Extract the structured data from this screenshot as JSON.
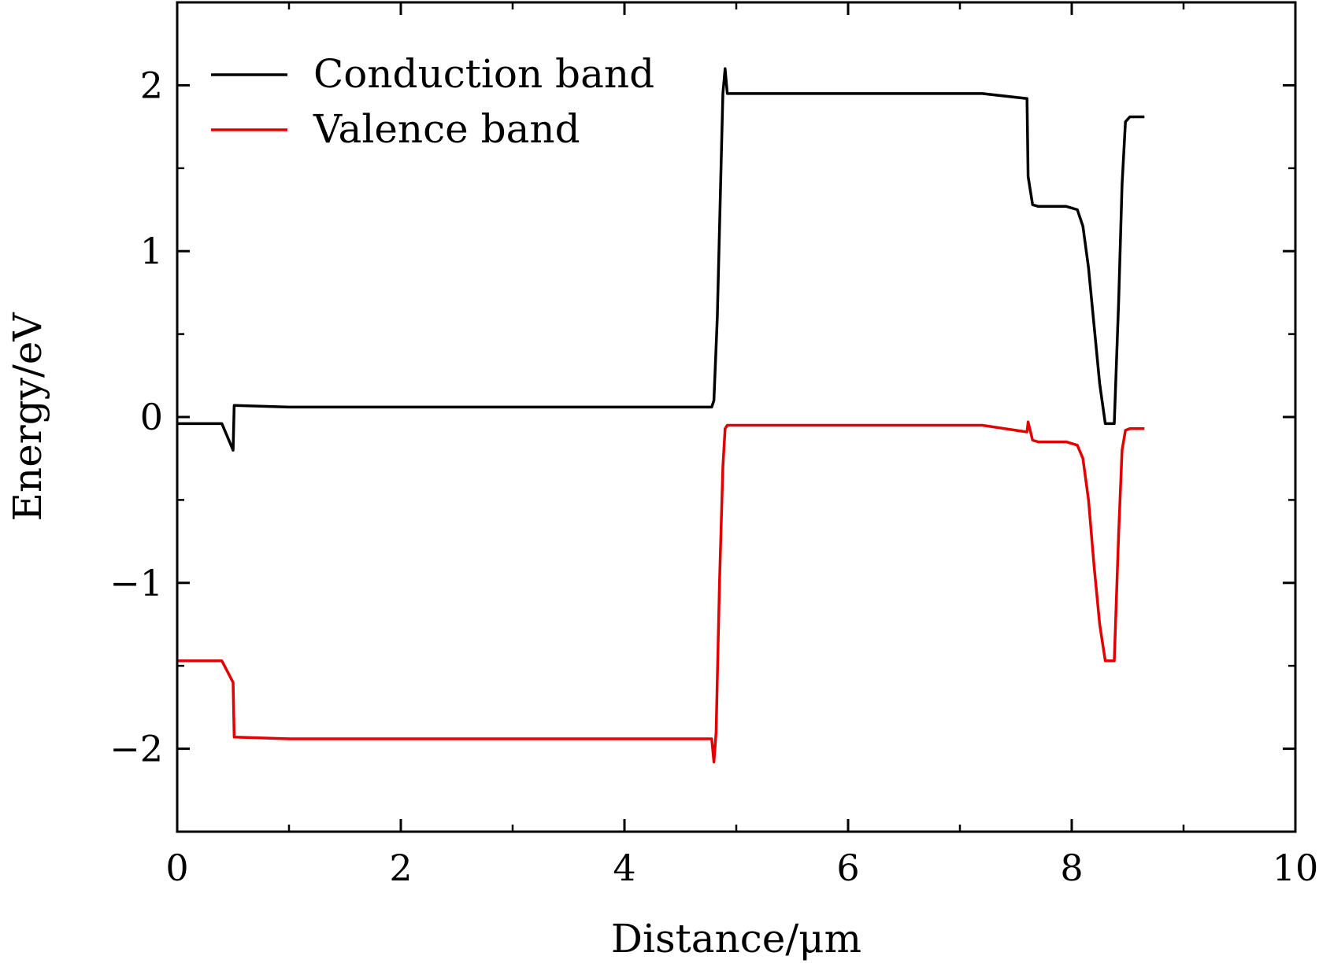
{
  "chart_data": {
    "type": "line",
    "title": "",
    "xlabel": "Distance/μm",
    "ylabel": "Energy/eV",
    "xlim": [
      0,
      10
    ],
    "ylim": [
      -2.5,
      2.5
    ],
    "xticks": [
      0,
      2,
      4,
      6,
      8,
      10
    ],
    "xtick_labels": [
      "0",
      "2",
      "4",
      "6",
      "8",
      "10"
    ],
    "xminor": [
      1,
      3,
      5,
      7,
      9
    ],
    "yticks": [
      -2,
      -1,
      0,
      1,
      2
    ],
    "ytick_labels": [
      "−2",
      "−1",
      "0",
      "1",
      "2"
    ],
    "yminor": [
      -1.5,
      -0.5,
      0.5,
      1.5
    ],
    "grid": false,
    "legend_position": "top-left",
    "series": [
      {
        "name": "Conduction band",
        "color": "#000000",
        "points": [
          [
            0,
            -0.04
          ],
          [
            0.4,
            -0.04
          ],
          [
            0.5,
            -0.2
          ],
          [
            0.51,
            0.07
          ],
          [
            1.0,
            0.06
          ],
          [
            4.5,
            0.06
          ],
          [
            4.78,
            0.06
          ],
          [
            4.8,
            0.1
          ],
          [
            4.83,
            0.6
          ],
          [
            4.86,
            1.4
          ],
          [
            4.88,
            1.95
          ],
          [
            4.9,
            2.1
          ],
          [
            4.92,
            1.95
          ],
          [
            5.3,
            1.95
          ],
          [
            7.2,
            1.95
          ],
          [
            7.6,
            1.92
          ],
          [
            7.61,
            1.45
          ],
          [
            7.65,
            1.28
          ],
          [
            7.7,
            1.27
          ],
          [
            7.95,
            1.27
          ],
          [
            8.05,
            1.25
          ],
          [
            8.1,
            1.15
          ],
          [
            8.15,
            0.9
          ],
          [
            8.2,
            0.55
          ],
          [
            8.25,
            0.2
          ],
          [
            8.3,
            -0.04
          ],
          [
            8.38,
            -0.04
          ],
          [
            8.42,
            0.7
          ],
          [
            8.45,
            1.4
          ],
          [
            8.48,
            1.78
          ],
          [
            8.52,
            1.81
          ],
          [
            8.65,
            1.81
          ]
        ]
      },
      {
        "name": "Valence band",
        "color": "#e30000",
        "points": [
          [
            0,
            -1.47
          ],
          [
            0.4,
            -1.47
          ],
          [
            0.5,
            -1.6
          ],
          [
            0.51,
            -1.93
          ],
          [
            1.0,
            -1.94
          ],
          [
            4.5,
            -1.94
          ],
          [
            4.78,
            -1.94
          ],
          [
            4.8,
            -2.08
          ],
          [
            4.82,
            -1.9
          ],
          [
            4.85,
            -1.0
          ],
          [
            4.88,
            -0.3
          ],
          [
            4.9,
            -0.07
          ],
          [
            4.92,
            -0.05
          ],
          [
            5.3,
            -0.05
          ],
          [
            7.2,
            -0.05
          ],
          [
            7.6,
            -0.09
          ],
          [
            7.61,
            -0.03
          ],
          [
            7.65,
            -0.14
          ],
          [
            7.7,
            -0.15
          ],
          [
            7.95,
            -0.15
          ],
          [
            8.05,
            -0.17
          ],
          [
            8.1,
            -0.25
          ],
          [
            8.15,
            -0.5
          ],
          [
            8.2,
            -0.9
          ],
          [
            8.25,
            -1.25
          ],
          [
            8.3,
            -1.47
          ],
          [
            8.38,
            -1.47
          ],
          [
            8.42,
            -0.7
          ],
          [
            8.45,
            -0.2
          ],
          [
            8.48,
            -0.08
          ],
          [
            8.52,
            -0.07
          ],
          [
            8.65,
            -0.07
          ]
        ]
      }
    ]
  }
}
